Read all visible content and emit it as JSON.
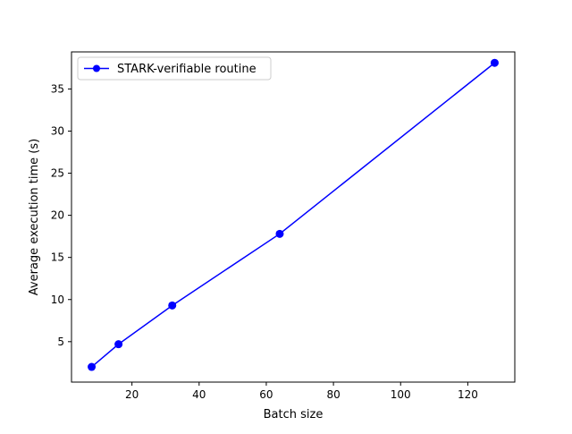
{
  "chart_data": {
    "type": "line",
    "title": "",
    "xlabel": "Batch size",
    "ylabel": "Average execution time (s)",
    "xlim": [
      2,
      134
    ],
    "ylim": [
      0.2,
      39.4
    ],
    "xticks": [
      20,
      40,
      60,
      80,
      100,
      120
    ],
    "yticks": [
      5,
      10,
      15,
      20,
      25,
      30,
      35
    ],
    "grid": false,
    "legend_position": "top-left",
    "series": [
      {
        "name": "STARK-verifiable routine",
        "color": "#0000ff",
        "marker": "circle",
        "x": [
          8,
          16,
          32,
          64,
          128
        ],
        "y": [
          2.0,
          4.7,
          9.3,
          17.8,
          38.1
        ]
      }
    ]
  }
}
